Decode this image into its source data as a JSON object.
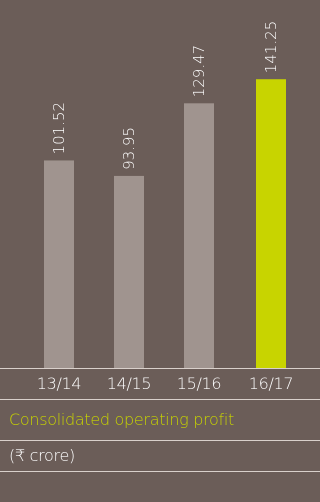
{
  "chart_data": {
    "type": "bar",
    "title": "Consolidated operating profit",
    "unit_label": "(₹ crore)",
    "categories": [
      "13/14",
      "14/15",
      "15/16",
      "16/17"
    ],
    "values": [
      101.52,
      93.95,
      129.47,
      141.25
    ],
    "value_labels": [
      "101.52",
      "93.95",
      "129.47",
      "141.25"
    ],
    "highlight_index": 3,
    "ylim": [
      0,
      180
    ],
    "grid": false,
    "colors": {
      "background": "#6b5d58",
      "bar": "#a0948f",
      "highlight": "#c8d400",
      "divider": "#d9d0cb",
      "title": "#c8d400",
      "text": "#ffffff"
    }
  }
}
